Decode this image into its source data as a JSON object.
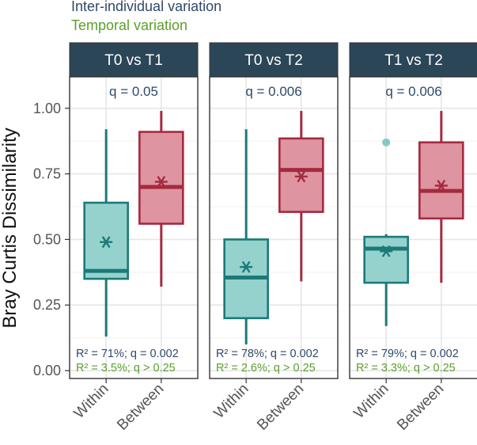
{
  "legend": {
    "inter_label": "Inter-individual variation",
    "temporal_label": "Temporal variation"
  },
  "colors": {
    "header_bg": "#2b4657",
    "within": "#1b7a78",
    "within_fill": "#8fd0cb",
    "between": "#a52a3f",
    "between_fill": "#dc8e9c",
    "inter_text": "#2e4a6b",
    "temporal_text": "#5aa02c",
    "grid": "#e6e6e6"
  },
  "chart_data": {
    "type": "box",
    "ylabel": "Bray Curtis Dissimilarity",
    "ylim": [
      -0.03,
      1.12
    ],
    "yticks": [
      0.0,
      0.25,
      0.5,
      0.75,
      1.0
    ],
    "ytick_labels": [
      "0.00",
      "0.25",
      "0.50",
      "0.75",
      "1.00"
    ],
    "categories": [
      "Within",
      "Between"
    ],
    "panels": [
      {
        "title": "T0 vs T1",
        "q_label": "q = 0.05",
        "r2_label": "R² = 71%; q = 0.002",
        "temporal_label": "R² = 3.5%; q > 0.25",
        "boxes": [
          {
            "category": "Within",
            "whisker_low": 0.13,
            "q1": 0.35,
            "median": 0.38,
            "q3": 0.64,
            "whisker_high": 0.92,
            "mean": 0.49,
            "outliers": []
          },
          {
            "category": "Between",
            "whisker_low": 0.32,
            "q1": 0.56,
            "median": 0.7,
            "q3": 0.91,
            "whisker_high": 0.99,
            "mean": 0.72,
            "outliers": []
          }
        ]
      },
      {
        "title": "T0 vs T2",
        "q_label": "q = 0.006",
        "r2_label": "R² = 78%; q = 0.002",
        "temporal_label": "R² = 2.6%; q > 0.25",
        "boxes": [
          {
            "category": "Within",
            "whisker_low": 0.1,
            "q1": 0.2,
            "median": 0.355,
            "q3": 0.5,
            "whisker_high": 0.92,
            "mean": 0.395,
            "outliers": []
          },
          {
            "category": "Between",
            "whisker_low": 0.34,
            "q1": 0.605,
            "median": 0.765,
            "q3": 0.885,
            "whisker_high": 0.99,
            "mean": 0.74,
            "outliers": []
          }
        ]
      },
      {
        "title": "T1 vs T2",
        "q_label": "q = 0.006",
        "r2_label": "R² = 79%; q = 0.002",
        "temporal_label": "R² = 3.3%; q > 0.25",
        "boxes": [
          {
            "category": "Within",
            "whisker_low": 0.17,
            "q1": 0.335,
            "median": 0.465,
            "q3": 0.51,
            "whisker_high": 0.52,
            "mean": 0.455,
            "outliers": [
              0.87
            ]
          },
          {
            "category": "Between",
            "whisker_low": 0.335,
            "q1": 0.58,
            "median": 0.685,
            "q3": 0.87,
            "whisker_high": 0.99,
            "mean": 0.705,
            "outliers": []
          }
        ]
      }
    ]
  }
}
